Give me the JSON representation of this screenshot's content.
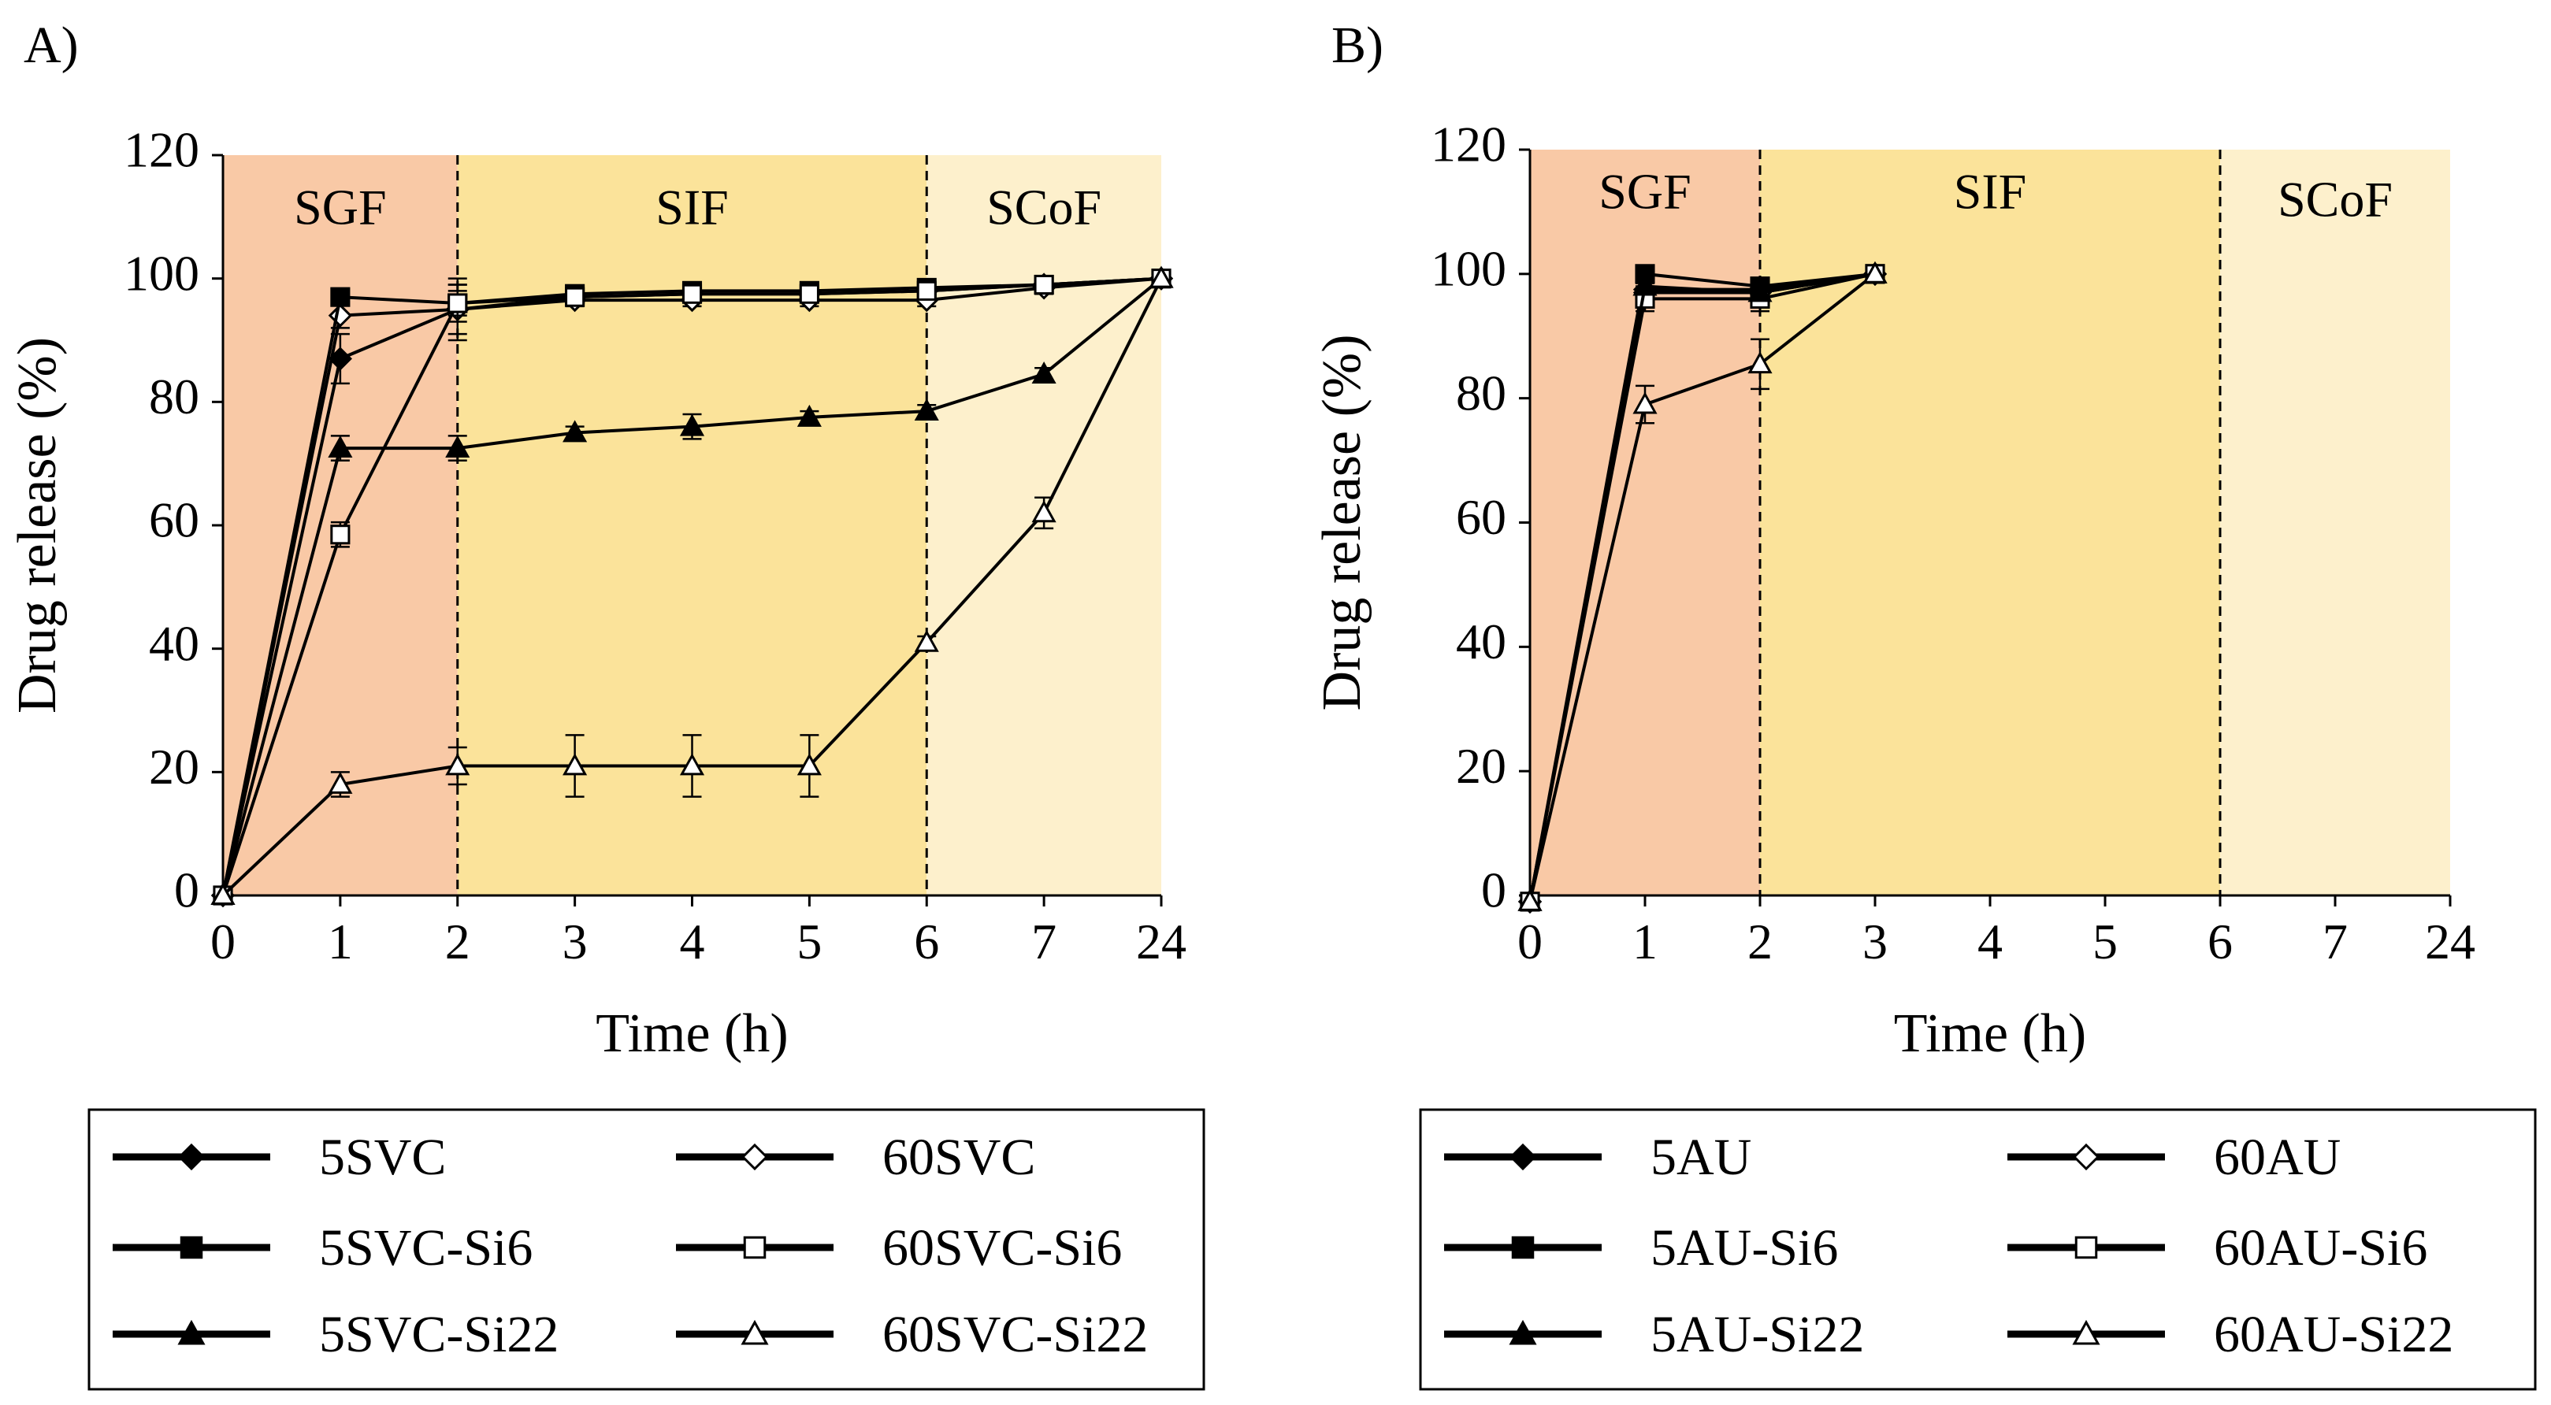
{
  "chart_data": [
    {
      "panel_label": "A)",
      "type": "line",
      "x_positions": [
        0,
        1,
        2,
        3,
        4,
        5,
        6,
        7,
        8
      ],
      "xtick_labels": [
        "0",
        "1",
        "2",
        "3",
        "4",
        "5",
        "6",
        "7",
        "24"
      ],
      "x_hours": [
        0,
        1,
        2,
        3,
        4,
        5,
        6,
        7,
        24
      ],
      "xlim": [
        0,
        8
      ],
      "ylim": [
        0,
        120
      ],
      "yticks": [
        0,
        20,
        40,
        60,
        80,
        100,
        120
      ],
      "xlabel": "Time (h)",
      "ylabel": "Drug release (%)",
      "phases": [
        {
          "label": "SGF",
          "start": 0,
          "end": 2,
          "color": "#f9c9a6"
        },
        {
          "label": "SIF",
          "start": 2,
          "end": 6,
          "color": "#fbe39a"
        },
        {
          "label": "SCoF",
          "start": 6,
          "end": 8,
          "color": "#fdf0cc"
        }
      ],
      "phase_boundaries": [
        2,
        6
      ],
      "series": [
        {
          "name": "5SVC",
          "marker": "diamond-filled",
          "x": [
            0,
            1,
            2,
            3,
            4,
            5,
            6,
            7,
            8
          ],
          "values": [
            0,
            87,
            95,
            97,
            97.5,
            97.5,
            98,
            99,
            100
          ],
          "errors": [
            0,
            4,
            5,
            1,
            1,
            1,
            1,
            1,
            0
          ]
        },
        {
          "name": "60SVC",
          "marker": "diamond-open",
          "x": [
            0,
            1,
            2,
            3,
            4,
            5,
            6,
            7,
            8
          ],
          "values": [
            0,
            94,
            95,
            96.5,
            96.5,
            96.5,
            96.5,
            98.5,
            100
          ],
          "errors": [
            0,
            2,
            4,
            1,
            1,
            1,
            1,
            1,
            0
          ]
        },
        {
          "name": "5SVC-Si6",
          "marker": "square-filled",
          "x": [
            0,
            1,
            2,
            3,
            4,
            5,
            6,
            7,
            8
          ],
          "values": [
            0,
            97,
            96,
            97.5,
            98,
            98,
            98.5,
            99,
            100
          ],
          "errors": [
            0,
            1,
            2,
            1,
            1,
            1,
            1,
            1,
            0
          ]
        },
        {
          "name": "60SVC-Si6",
          "marker": "square-open",
          "x": [
            0,
            1,
            2,
            3,
            4,
            5,
            6,
            7,
            8
          ],
          "values": [
            0,
            58.5,
            96,
            97,
            97.5,
            97.5,
            98,
            99,
            100
          ],
          "errors": [
            0,
            2,
            3,
            1,
            1,
            1,
            1,
            1,
            0
          ]
        },
        {
          "name": "5SVC-Si22",
          "marker": "triangle-filled",
          "x": [
            0,
            1,
            2,
            3,
            4,
            5,
            6,
            7,
            8
          ],
          "values": [
            0,
            72.5,
            72.5,
            75,
            76,
            77.5,
            78.5,
            84.5,
            100
          ],
          "errors": [
            0,
            2,
            2,
            1,
            2,
            1,
            1,
            1,
            0
          ]
        },
        {
          "name": "60SVC-Si22",
          "marker": "triangle-open",
          "x": [
            0,
            1,
            2,
            3,
            4,
            5,
            6,
            7,
            8
          ],
          "values": [
            0,
            18,
            21,
            21,
            21,
            21,
            41,
            62,
            100
          ],
          "errors": [
            0,
            2,
            3,
            5,
            5,
            5,
            1,
            2.5,
            0
          ]
        }
      ],
      "legend": {
        "placement": "below",
        "columns": 2
      }
    },
    {
      "panel_label": "B)",
      "type": "line",
      "x_positions": [
        0,
        1,
        2,
        3,
        4,
        5,
        6,
        7,
        8
      ],
      "xtick_labels": [
        "0",
        "1",
        "2",
        "3",
        "4",
        "5",
        "6",
        "7",
        "24"
      ],
      "x_hours": [
        0,
        1,
        2,
        3,
        4,
        5,
        6,
        7,
        24
      ],
      "xlim": [
        0,
        8
      ],
      "ylim": [
        0,
        120
      ],
      "yticks": [
        0,
        20,
        40,
        60,
        80,
        100,
        120
      ],
      "xlabel": "Time (h)",
      "ylabel": "Drug release (%)",
      "phases": [
        {
          "label": "SGF",
          "start": 0,
          "end": 2,
          "color": "#f9c9a6"
        },
        {
          "label": "SIF",
          "start": 2,
          "end": 6,
          "color": "#fbe39a"
        },
        {
          "label": "SCoF",
          "start": 6,
          "end": 8,
          "color": "#fdf0cc"
        }
      ],
      "phase_boundaries": [
        2,
        6
      ],
      "series": [
        {
          "name": "5AU",
          "marker": "diamond-filled",
          "x": [
            0,
            1,
            2,
            3
          ],
          "values": [
            -1,
            97.5,
            97.5,
            100
          ],
          "errors": [
            0,
            1,
            1,
            0
          ]
        },
        {
          "name": "60AU",
          "marker": "diamond-open",
          "x": [
            0,
            1,
            2,
            3
          ],
          "values": [
            -1,
            97,
            97,
            100
          ],
          "errors": [
            0,
            1,
            1,
            0
          ]
        },
        {
          "name": "5AU-Si6",
          "marker": "square-filled",
          "x": [
            0,
            1,
            2,
            3
          ],
          "values": [
            -1,
            100,
            98,
            100
          ],
          "errors": [
            0,
            1,
            1,
            0
          ]
        },
        {
          "name": "60AU-Si6",
          "marker": "square-open",
          "x": [
            0,
            1,
            2,
            3
          ],
          "values": [
            -1,
            96,
            96,
            100
          ],
          "errors": [
            0,
            2,
            2,
            0
          ]
        },
        {
          "name": "5AU-Si22",
          "marker": "triangle-filled",
          "x": [
            0,
            1,
            2,
            3
          ],
          "values": [
            -1,
            98,
            97,
            100
          ],
          "errors": [
            0,
            1,
            1,
            0
          ]
        },
        {
          "name": "60AU-Si22",
          "marker": "triangle-open",
          "x": [
            0,
            1,
            2,
            3
          ],
          "values": [
            -1,
            79,
            85.5,
            100
          ],
          "errors": [
            0,
            3,
            4,
            0
          ]
        }
      ],
      "legend": {
        "placement": "below",
        "columns": 2
      }
    }
  ]
}
